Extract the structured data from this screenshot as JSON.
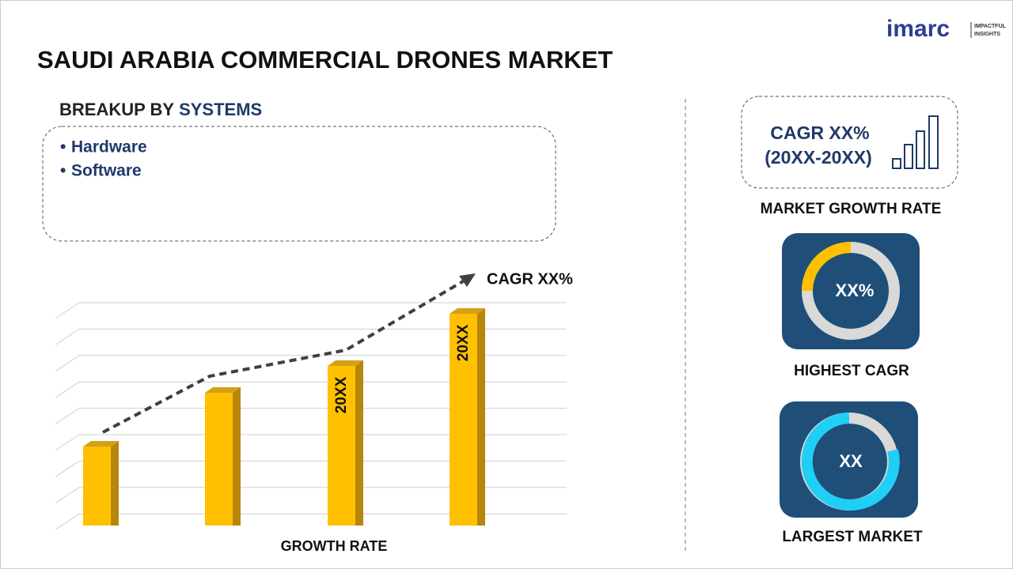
{
  "header": {
    "title": "SAUDI ARABIA COMMERCIAL DRONES MARKET",
    "logo": "imarc",
    "tagline": [
      "IMPACTFUL",
      "INSIGHTS"
    ]
  },
  "breakup": {
    "label": "BREAKUP BY",
    "segment": "SYSTEMS",
    "items": [
      "Hardware",
      "Software"
    ]
  },
  "growth_chart": {
    "trend_label": "CAGR XX%",
    "bar_labels": [
      "20XX",
      "20XX"
    ],
    "axis_label": "GROWTH RATE"
  },
  "cards": [
    {
      "title": "CAGR XX%",
      "subtitle": "(20XX-20XX)",
      "caption": "MARKET GROWTH RATE"
    },
    {
      "value": "XX%",
      "caption": "HIGHEST CAGR"
    },
    {
      "value": "XX",
      "caption": "LARGEST MARKET"
    }
  ]
}
